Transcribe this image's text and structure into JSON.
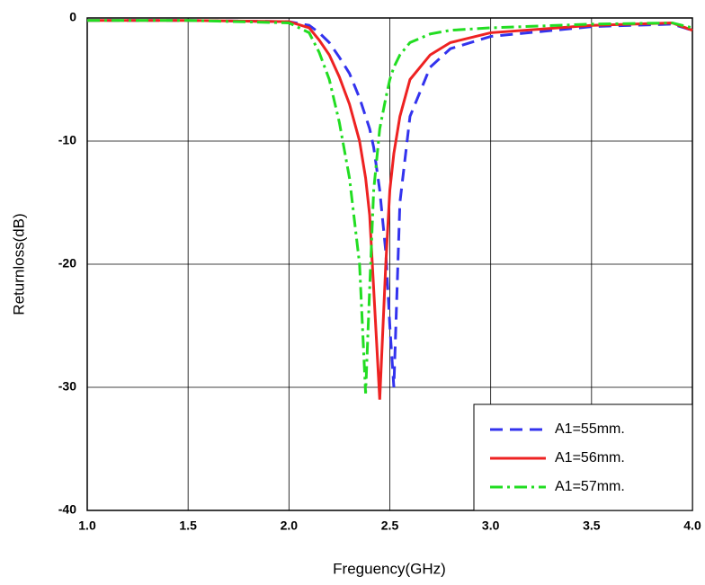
{
  "chart_data": {
    "type": "line",
    "xlabel": "Freguency(GHz)",
    "ylabel": "Returnloss(dB)",
    "x": [
      1.0,
      1.5,
      2.0,
      2.1,
      2.15,
      2.2,
      2.25,
      2.3,
      2.35,
      2.38,
      2.4,
      2.42,
      2.45,
      2.48,
      2.5,
      2.52,
      2.55,
      2.6,
      2.7,
      2.8,
      3.0,
      3.5,
      3.9,
      4.0
    ],
    "series": [
      {
        "name": "A1=55mm.",
        "color": "#3333ee",
        "dash": "dashed",
        "values": [
          -0.2,
          -0.2,
          -0.3,
          -0.6,
          -1.2,
          -2,
          -3.2,
          -4.5,
          -6.5,
          -8,
          -9,
          -10.5,
          -14,
          -19,
          -25,
          -30,
          -15,
          -8,
          -4,
          -2.5,
          -1.5,
          -0.7,
          -0.5,
          -1
        ]
      },
      {
        "name": "A1=56mm.",
        "color": "#ee2222",
        "dash": "solid",
        "values": [
          -0.2,
          -0.2,
          -0.3,
          -0.8,
          -1.8,
          -3,
          -4.8,
          -7,
          -10,
          -13,
          -16,
          -22,
          -31,
          -20,
          -14,
          -11,
          -8,
          -5,
          -3,
          -2,
          -1.2,
          -0.6,
          -0.4,
          -1
        ]
      },
      {
        "name": "A1=57mm.",
        "color": "#22dd22",
        "dash": "dashdot",
        "values": [
          -0.2,
          -0.2,
          -0.4,
          -1.2,
          -2.8,
          -5,
          -8.5,
          -13,
          -20,
          -30.5,
          -22,
          -14,
          -9,
          -6.5,
          -5,
          -4,
          -3,
          -2,
          -1.3,
          -1,
          -0.8,
          -0.5,
          -0.4,
          -0.8
        ]
      }
    ],
    "xlim": [
      1.0,
      4.0
    ],
    "xticks": [
      {
        "value": 1.0,
        "label": "1.0"
      },
      1.5,
      {
        "value": 2.0,
        "label": "2.0"
      },
      2.5,
      {
        "value": 3.0,
        "label": "3.0"
      },
      3.5,
      {
        "value": 4.0,
        "label": "4.0"
      }
    ],
    "ylim": [
      -40,
      0
    ],
    "yticks": [
      0,
      -10,
      -20,
      -30,
      -40
    ],
    "grid": true,
    "legend": "lower right"
  }
}
